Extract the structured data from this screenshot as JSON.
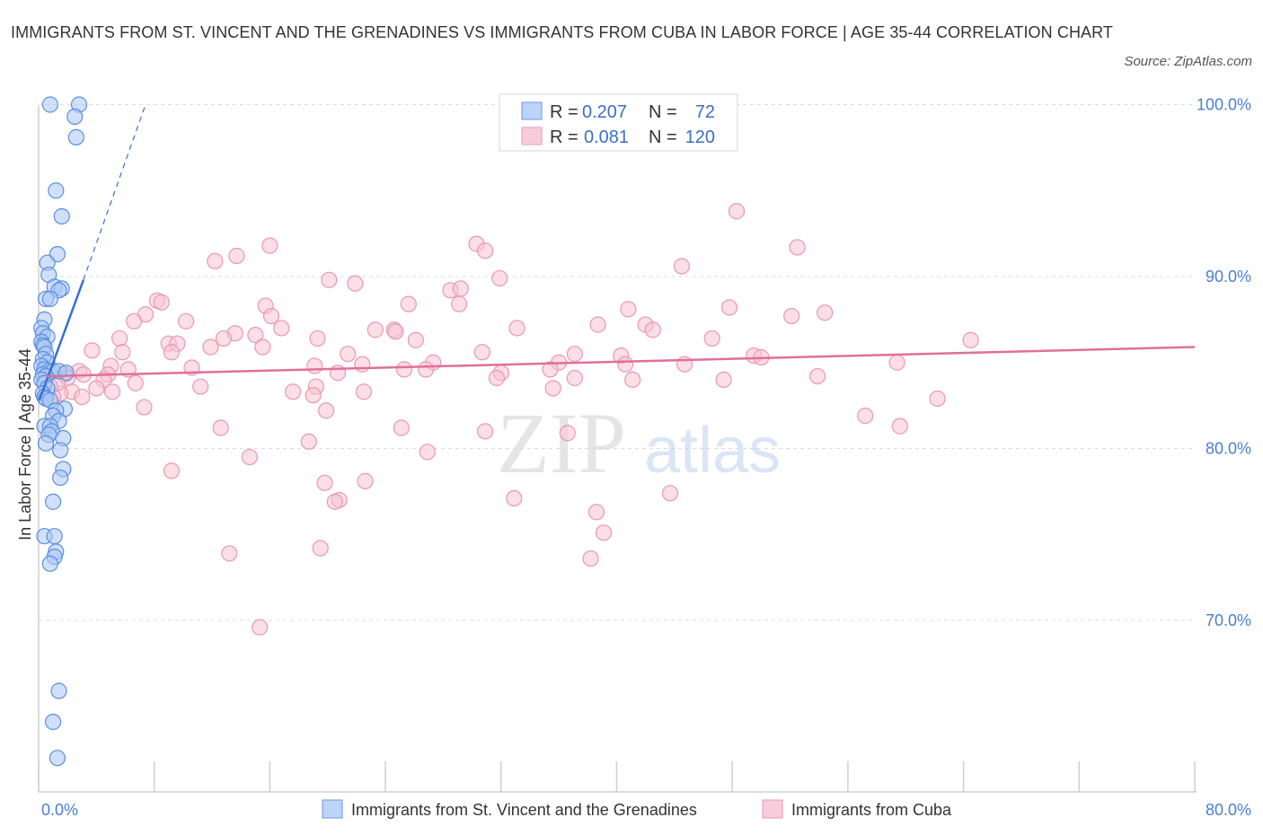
{
  "title": "IMMIGRANTS FROM ST. VINCENT AND THE GRENADINES VS IMMIGRANTS FROM CUBA IN LABOR FORCE | AGE 35-44 CORRELATION CHART",
  "source": "Source: ZipAtlas.com",
  "colors": {
    "blue_fill": "#a9c7f5",
    "blue_stroke": "#5b8fe0",
    "blue_line": "#3a6fd0",
    "pink_fill": "#f7c2d2",
    "pink_stroke": "#e898b3",
    "pink_line": "#e07098",
    "tick_text": "#4a7fd0",
    "grid": "#dcdcdc"
  },
  "legend": {
    "rows": [
      {
        "r_label": "R = ",
        "r_value": "0.207",
        "n_label": "N = ",
        "n_value": "72"
      },
      {
        "r_label": "R = ",
        "r_value": "0.081",
        "n_label": "N = ",
        "n_value": "120"
      }
    ]
  },
  "chart_data": {
    "type": "scatter",
    "title": "IMMIGRANTS FROM ST. VINCENT AND THE GRENADINES VS IMMIGRANTS FROM CUBA IN LABOR FORCE | AGE 35-44 CORRELATION CHART",
    "xlabel": "",
    "ylabel": "In Labor Force | Age 35-44",
    "xlim": [
      0,
      80
    ],
    "ylim": [
      61,
      101
    ],
    "x_tick_labels": [
      "0.0%",
      "80.0%"
    ],
    "y_ticks": [
      70,
      80,
      90,
      100
    ],
    "y_tick_labels": [
      "70.0%",
      "80.0%",
      "90.0%",
      "100.0%"
    ],
    "grid": true,
    "watermark": {
      "zip": "ZIP",
      "atlas": "atlas"
    },
    "series": [
      {
        "name": "Immigrants from St. Vincent and the Grenadines",
        "R": 0.207,
        "N": 72,
        "trend": {
          "x0": 0.05,
          "y0": 82.8,
          "x1": 3.1,
          "y1": 89.8,
          "dash_to_x": 7.4,
          "dash_to_y": 100
        },
        "points": [
          [
            0.8,
            100
          ],
          [
            2.8,
            100
          ],
          [
            2.5,
            99.3
          ],
          [
            2.6,
            98.1
          ],
          [
            1.2,
            95
          ],
          [
            1.6,
            93.5
          ],
          [
            1.3,
            91.3
          ],
          [
            0.6,
            90.8
          ],
          [
            0.7,
            90.1
          ],
          [
            1.1,
            89.4
          ],
          [
            1.6,
            89.3
          ],
          [
            1.4,
            89.2
          ],
          [
            0.5,
            88.7
          ],
          [
            0.8,
            88.7
          ],
          [
            0.4,
            87.5
          ],
          [
            0.2,
            87
          ],
          [
            0.3,
            86.7
          ],
          [
            0.6,
            86.5
          ],
          [
            0.2,
            86.2
          ],
          [
            0.3,
            86
          ],
          [
            0.4,
            85.9
          ],
          [
            0.5,
            85.5
          ],
          [
            0.3,
            85.2
          ],
          [
            0.6,
            85
          ],
          [
            0.2,
            84.8
          ],
          [
            0.4,
            84.6
          ],
          [
            0.7,
            84.5
          ],
          [
            1.0,
            84.5
          ],
          [
            1.4,
            84.5
          ],
          [
            1.9,
            84.4
          ],
          [
            0.3,
            84.3
          ],
          [
            0.5,
            84.2
          ],
          [
            0.2,
            84
          ],
          [
            0.4,
            83.8
          ],
          [
            0.6,
            83.5
          ],
          [
            0.3,
            83.2
          ],
          [
            0.4,
            83
          ],
          [
            0.5,
            82.9
          ],
          [
            0.8,
            82.8
          ],
          [
            1.8,
            82.3
          ],
          [
            1.2,
            82.2
          ],
          [
            1.0,
            81.9
          ],
          [
            1.4,
            81.6
          ],
          [
            0.4,
            81.3
          ],
          [
            0.8,
            81.3
          ],
          [
            0.9,
            81
          ],
          [
            0.7,
            80.8
          ],
          [
            1.7,
            80.6
          ],
          [
            0.5,
            80.3
          ],
          [
            1.5,
            79.9
          ],
          [
            1.7,
            78.8
          ],
          [
            1.5,
            78.3
          ],
          [
            1.0,
            76.9
          ],
          [
            0.4,
            74.9
          ],
          [
            1.1,
            74.9
          ],
          [
            1.2,
            74
          ],
          [
            1.1,
            73.7
          ],
          [
            0.8,
            73.3
          ],
          [
            1.4,
            65.9
          ],
          [
            1.0,
            64.1
          ],
          [
            1.3,
            62
          ]
        ]
      },
      {
        "name": "Immigrants from Cuba",
        "R": 0.081,
        "N": 120,
        "trend": {
          "x0": 0.5,
          "y0": 84.2,
          "x1": 80,
          "y1": 85.9
        },
        "points": [
          [
            48.3,
            93.8
          ],
          [
            30.3,
            91.9
          ],
          [
            52.5,
            91.7
          ],
          [
            16.0,
            91.8
          ],
          [
            30.9,
            91.5
          ],
          [
            13.7,
            91.2
          ],
          [
            12.2,
            90.9
          ],
          [
            44.5,
            90.6
          ],
          [
            31.9,
            89.9
          ],
          [
            20.1,
            89.8
          ],
          [
            21.9,
            89.6
          ],
          [
            28.5,
            89.2
          ],
          [
            29.2,
            89.3
          ],
          [
            8.2,
            88.6
          ],
          [
            8.5,
            88.5
          ],
          [
            15.7,
            88.3
          ],
          [
            25.6,
            88.4
          ],
          [
            29.1,
            88.4
          ],
          [
            40.8,
            88.1
          ],
          [
            47.8,
            88.2
          ],
          [
            54.4,
            87.9
          ],
          [
            52.1,
            87.7
          ],
          [
            16.1,
            87.7
          ],
          [
            7.4,
            87.8
          ],
          [
            6.6,
            87.4
          ],
          [
            10.2,
            87.4
          ],
          [
            38.7,
            87.2
          ],
          [
            42.0,
            87.2
          ],
          [
            16.8,
            87.0
          ],
          [
            33.1,
            87.0
          ],
          [
            24.6,
            86.9
          ],
          [
            42.5,
            86.9
          ],
          [
            23.3,
            86.9
          ],
          [
            24.7,
            86.8
          ],
          [
            13.6,
            86.7
          ],
          [
            15.0,
            86.6
          ],
          [
            12.8,
            86.4
          ],
          [
            19.3,
            86.4
          ],
          [
            5.6,
            86.4
          ],
          [
            26.1,
            86.3
          ],
          [
            46.6,
            86.4
          ],
          [
            64.5,
            86.3
          ],
          [
            9.0,
            86.1
          ],
          [
            9.6,
            86.1
          ],
          [
            15.5,
            85.9
          ],
          [
            11.9,
            85.9
          ],
          [
            9.2,
            85.6
          ],
          [
            3.7,
            85.7
          ],
          [
            5.8,
            85.6
          ],
          [
            21.4,
            85.5
          ],
          [
            30.7,
            85.6
          ],
          [
            37.1,
            85.5
          ],
          [
            40.3,
            85.4
          ],
          [
            49.5,
            85.4
          ],
          [
            50.0,
            85.3
          ],
          [
            36.0,
            85.0
          ],
          [
            27.3,
            85.0
          ],
          [
            40.6,
            84.9
          ],
          [
            44.7,
            84.9
          ],
          [
            19.1,
            84.8
          ],
          [
            22.4,
            84.9
          ],
          [
            35.4,
            84.6
          ],
          [
            26.8,
            84.6
          ],
          [
            59.4,
            85.0
          ],
          [
            5.0,
            84.8
          ],
          [
            2.8,
            84.5
          ],
          [
            3.1,
            84.3
          ],
          [
            4.8,
            84.3
          ],
          [
            6.2,
            84.6
          ],
          [
            10.6,
            84.7
          ],
          [
            25.3,
            84.6
          ],
          [
            20.7,
            84.4
          ],
          [
            32.0,
            84.4
          ],
          [
            31.7,
            84.1
          ],
          [
            37.1,
            84.1
          ],
          [
            41.1,
            84.0
          ],
          [
            47.4,
            84.0
          ],
          [
            53.9,
            84.2
          ],
          [
            1.8,
            84.3
          ],
          [
            2.0,
            84.1
          ],
          [
            4.5,
            84.0
          ],
          [
            6.7,
            83.8
          ],
          [
            11.2,
            83.6
          ],
          [
            19.2,
            83.6
          ],
          [
            4.0,
            83.5
          ],
          [
            2.3,
            83.3
          ],
          [
            3.0,
            83.0
          ],
          [
            35.6,
            83.5
          ],
          [
            22.5,
            83.3
          ],
          [
            17.6,
            83.3
          ],
          [
            1.5,
            83.2
          ],
          [
            1.0,
            83.0
          ],
          [
            5.1,
            83.3
          ],
          [
            19.0,
            83.1
          ],
          [
            62.2,
            82.9
          ],
          [
            7.3,
            82.4
          ],
          [
            19.9,
            82.2
          ],
          [
            57.2,
            81.9
          ],
          [
            12.6,
            81.2
          ],
          [
            25.1,
            81.2
          ],
          [
            59.6,
            81.3
          ],
          [
            30.9,
            81.0
          ],
          [
            36.6,
            80.9
          ],
          [
            18.7,
            80.4
          ],
          [
            26.9,
            79.8
          ],
          [
            14.6,
            79.5
          ],
          [
            9.2,
            78.7
          ],
          [
            19.8,
            78.0
          ],
          [
            22.6,
            78.1
          ],
          [
            43.7,
            77.4
          ],
          [
            32.9,
            77.1
          ],
          [
            20.8,
            77.0
          ],
          [
            20.5,
            76.9
          ],
          [
            38.6,
            76.3
          ],
          [
            39.1,
            75.1
          ],
          [
            19.5,
            74.2
          ],
          [
            13.2,
            73.9
          ],
          [
            38.2,
            73.6
          ],
          [
            15.3,
            69.6
          ],
          [
            1.3,
            83.8
          ],
          [
            0.8,
            83.6
          ]
        ]
      }
    ]
  }
}
